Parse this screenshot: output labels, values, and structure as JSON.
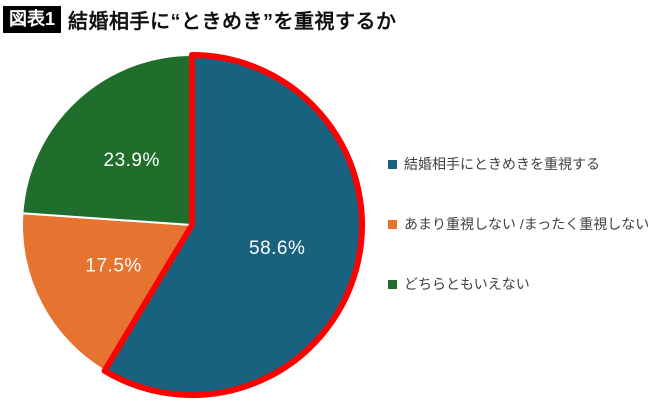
{
  "header": {
    "tag": "図表1",
    "title": "結婚相手に“ときめき”を重視するか"
  },
  "chart_data": {
    "type": "pie",
    "title": "結婚相手に“ときめき”を重視するか",
    "start_angle_deg": 0,
    "direction": "clockwise",
    "total": 100,
    "slices": [
      {
        "label": "結婚相手にときめきを重視する",
        "value": 58.6,
        "display": "58.6%",
        "color": "#18617f",
        "outline": "#ff0000"
      },
      {
        "label": "あまり重視しない /まったく重視しない",
        "value": 17.5,
        "display": "17.5%",
        "color": "#e6732f",
        "outline": null
      },
      {
        "label": "どちらともいえない",
        "value": 23.9,
        "display": "23.9%",
        "color": "#1f6e2c",
        "outline": null
      }
    ],
    "slice_label_color": "#ffffff",
    "separator_color": "#ffffff",
    "legend_position": "right",
    "legend_text_color": "#404040"
  }
}
